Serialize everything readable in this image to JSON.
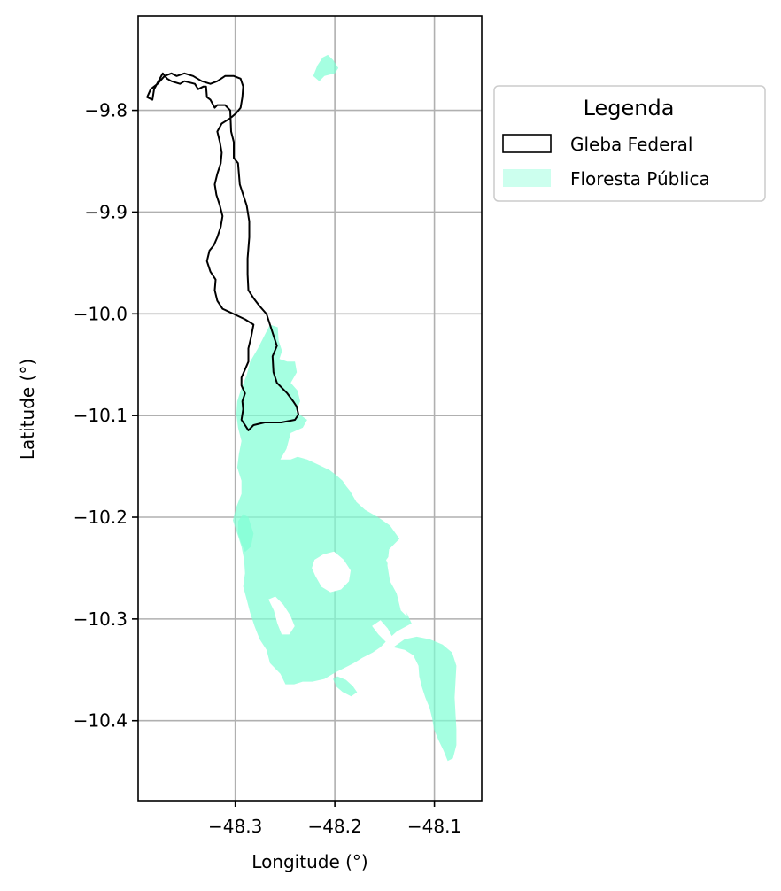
{
  "map": {
    "xlabel": "Longitude (°)",
    "ylabel": "Latitude (°)",
    "xlim": [
      -48.3975,
      -48.0525
    ],
    "ylim": [
      -10.4786,
      -9.7072
    ],
    "grid": true,
    "x_ticks": [
      {
        "value": -48.3,
        "label": "−48.3"
      },
      {
        "value": -48.2,
        "label": "−48.2"
      },
      {
        "value": -48.1,
        "label": "−48.1"
      }
    ],
    "y_ticks": [
      {
        "value": -9.8,
        "label": "−9.8"
      },
      {
        "value": -9.9,
        "label": "−9.9"
      },
      {
        "value": -10.0,
        "label": "−10.0"
      },
      {
        "value": -10.1,
        "label": "−10.1"
      },
      {
        "value": -10.2,
        "label": "−10.2"
      },
      {
        "value": -10.3,
        "label": "−10.3"
      },
      {
        "value": -10.4,
        "label": "−10.4"
      }
    ]
  },
  "legend": {
    "title": "Legenda",
    "placement": "outside-upper-right",
    "items": [
      {
        "label": "Gleba Federal",
        "style": "outline",
        "color": "#000000"
      },
      {
        "label": "Floresta Pública",
        "style": "fill",
        "color": "#7fffd4"
      }
    ]
  },
  "layers": {
    "gleba_federal": {
      "name": "Gleba Federal",
      "stroke": "#000000",
      "fill": "none",
      "coordinates": [
        [
          -48.3832,
          -9.7896
        ],
        [
          -48.3815,
          -9.7792
        ],
        [
          -48.3728,
          -9.7636
        ],
        [
          -48.3684,
          -9.7688
        ],
        [
          -48.3641,
          -9.7714
        ],
        [
          -48.3554,
          -9.774
        ],
        [
          -48.351,
          -9.7714
        ],
        [
          -48.3406,
          -9.774
        ],
        [
          -48.3372,
          -9.7792
        ],
        [
          -48.3319,
          -9.7766
        ],
        [
          -48.3293,
          -9.7766
        ],
        [
          -48.3284,
          -9.787
        ],
        [
          -48.3249,
          -9.7896
        ],
        [
          -48.3206,
          -9.7974
        ],
        [
          -48.318,
          -9.7948
        ],
        [
          -48.3102,
          -9.7948
        ],
        [
          -48.305,
          -9.8
        ],
        [
          -48.3041,
          -9.8208
        ],
        [
          -48.3015,
          -9.8312
        ],
        [
          -48.3015,
          -9.8468
        ],
        [
          -48.2972,
          -9.852
        ],
        [
          -48.2954,
          -9.8728
        ],
        [
          -48.2885,
          -9.8936
        ],
        [
          -48.2859,
          -9.9092
        ],
        [
          -48.2859,
          -9.9248
        ],
        [
          -48.2876,
          -9.9456
        ],
        [
          -48.2876,
          -9.9612
        ],
        [
          -48.2868,
          -9.9768
        ],
        [
          -48.2816,
          -9.9846
        ],
        [
          -48.2755,
          -9.9924
        ],
        [
          -48.2686,
          -10.0002
        ],
        [
          -48.2651,
          -10.0106
        ],
        [
          -48.2608,
          -10.0236
        ],
        [
          -48.2582,
          -10.0314
        ],
        [
          -48.2625,
          -10.0418
        ],
        [
          -48.2616,
          -10.0574
        ],
        [
          -48.2582,
          -10.0678
        ],
        [
          -48.2478,
          -10.0782
        ],
        [
          -48.2418,
          -10.086
        ],
        [
          -48.2383,
          -10.0912
        ],
        [
          -48.2366,
          -10.099
        ],
        [
          -48.24,
          -10.1042
        ],
        [
          -48.2539,
          -10.1068
        ],
        [
          -48.2704,
          -10.1068
        ],
        [
          -48.2816,
          -10.1094
        ],
        [
          -48.2868,
          -10.1146
        ],
        [
          -48.2902,
          -10.1094
        ],
        [
          -48.2937,
          -10.1042
        ],
        [
          -48.292,
          -10.0938
        ],
        [
          -48.2928,
          -10.086
        ],
        [
          -48.2902,
          -10.0782
        ],
        [
          -48.2937,
          -10.0704
        ],
        [
          -48.2937,
          -10.0626
        ],
        [
          -48.2902,
          -10.0548
        ],
        [
          -48.2868,
          -10.047
        ],
        [
          -48.2868,
          -10.034
        ],
        [
          -48.2842,
          -10.0236
        ],
        [
          -48.2816,
          -10.0106
        ],
        [
          -48.2902,
          -10.0054
        ],
        [
          -48.3015,
          -10.0002
        ],
        [
          -48.3128,
          -9.995
        ],
        [
          -48.318,
          -9.9872
        ],
        [
          -48.3206,
          -9.9768
        ],
        [
          -48.3197,
          -9.9664
        ],
        [
          -48.3249,
          -9.9586
        ],
        [
          -48.3284,
          -9.9482
        ],
        [
          -48.3258,
          -9.9378
        ],
        [
          -48.3215,
          -9.9326
        ],
        [
          -48.318,
          -9.9248
        ],
        [
          -48.3145,
          -9.9144
        ],
        [
          -48.3128,
          -9.904
        ],
        [
          -48.3154,
          -9.8936
        ],
        [
          -48.3189,
          -9.8832
        ],
        [
          -48.3206,
          -9.8728
        ],
        [
          -48.318,
          -9.8624
        ],
        [
          -48.3145,
          -9.852
        ],
        [
          -48.3136,
          -9.8416
        ],
        [
          -48.3154,
          -9.8312
        ],
        [
          -48.318,
          -9.8208
        ],
        [
          -48.3136,
          -9.813
        ],
        [
          -48.305,
          -9.8078
        ],
        [
          -48.2989,
          -9.8026
        ],
        [
          -48.2946,
          -9.7974
        ],
        [
          -48.2928,
          -9.787
        ],
        [
          -48.292,
          -9.7766
        ],
        [
          -48.2946,
          -9.7688
        ],
        [
          -48.3015,
          -9.7662
        ],
        [
          -48.3102,
          -9.7662
        ],
        [
          -48.318,
          -9.7714
        ],
        [
          -48.3249,
          -9.774
        ],
        [
          -48.3336,
          -9.7714
        ],
        [
          -48.3423,
          -9.7662
        ],
        [
          -48.351,
          -9.7636
        ],
        [
          -48.3588,
          -9.7662
        ],
        [
          -48.3641,
          -9.7636
        ],
        [
          -48.371,
          -9.7662
        ],
        [
          -48.378,
          -9.774
        ],
        [
          -48.3849,
          -9.7792
        ],
        [
          -48.3884,
          -9.787
        ],
        [
          -48.3832,
          -9.7896
        ]
      ]
    },
    "floresta_publica": {
      "name": "Floresta Pública",
      "fill": "#7fffd4",
      "opacity": 0.7,
      "polygons": [
        [
          [
            -48.2217,
            -9.7662
          ],
          [
            -48.2174,
            -9.7558
          ],
          [
            -48.2122,
            -9.748
          ],
          [
            -48.207,
            -9.7454
          ],
          [
            -48.2017,
            -9.7506
          ],
          [
            -48.1965,
            -9.7584
          ],
          [
            -48.2,
            -9.7636
          ],
          [
            -48.2104,
            -9.7662
          ],
          [
            -48.2156,
            -9.7714
          ],
          [
            -48.2217,
            -9.7662
          ]
        ],
        [
          [
            -48.2772,
            -10.034
          ],
          [
            -48.2651,
            -10.0106
          ],
          [
            -48.2573,
            -10.0132
          ],
          [
            -48.2565,
            -10.0262
          ],
          [
            -48.253,
            -10.0366
          ],
          [
            -48.2556,
            -10.0444
          ],
          [
            -48.2478,
            -10.047
          ],
          [
            -48.24,
            -10.047
          ],
          [
            -48.2382,
            -10.0574
          ],
          [
            -48.2443,
            -10.0678
          ],
          [
            -48.2374,
            -10.0756
          ],
          [
            -48.2348,
            -10.086
          ],
          [
            -48.2391,
            -10.0964
          ],
          [
            -48.2278,
            -10.1042
          ],
          [
            -48.2322,
            -10.112
          ],
          [
            -48.2443,
            -10.1172
          ],
          [
            -48.2486,
            -10.1328
          ],
          [
            -48.2547,
            -10.1432
          ],
          [
            -48.2443,
            -10.1432
          ],
          [
            -48.2374,
            -10.1406
          ],
          [
            -48.2278,
            -10.1432
          ],
          [
            -48.2165,
            -10.1484
          ],
          [
            -48.2053,
            -10.1536
          ],
          [
            -48.1983,
            -10.1588
          ],
          [
            -48.1923,
            -10.164
          ],
          [
            -48.1888,
            -10.1692
          ],
          [
            -48.1845,
            -10.1744
          ],
          [
            -48.1784,
            -10.1848
          ],
          [
            -48.1698,
            -10.1926
          ],
          [
            -48.1559,
            -10.2004
          ],
          [
            -48.1446,
            -10.2082
          ],
          [
            -48.1351,
            -10.2212
          ],
          [
            -48.1455,
            -10.2316
          ],
          [
            -48.1472,
            -10.2472
          ],
          [
            -48.1446,
            -10.2628
          ],
          [
            -48.1359,
            -10.2784
          ],
          [
            -48.129,
            -10.2914
          ],
          [
            -48.1229,
            -10.3044
          ],
          [
            -48.1377,
            -10.3122
          ],
          [
            -48.1464,
            -10.32
          ],
          [
            -48.1542,
            -10.3278
          ],
          [
            -48.162,
            -10.333
          ],
          [
            -48.1724,
            -10.3382
          ],
          [
            -48.181,
            -10.3434
          ],
          [
            -48.1914,
            -10.3486
          ],
          [
            -48.2018,
            -10.3538
          ],
          [
            -48.2105,
            -10.359
          ],
          [
            -48.2226,
            -10.3616
          ],
          [
            -48.2322,
            -10.3616
          ],
          [
            -48.2408,
            -10.3642
          ],
          [
            -48.2495,
            -10.3642
          ],
          [
            -48.2547,
            -10.3538
          ],
          [
            -48.2651,
            -10.3434
          ],
          [
            -48.2686,
            -10.3304
          ],
          [
            -48.2755,
            -10.32
          ],
          [
            -48.2807,
            -10.307
          ],
          [
            -48.285,
            -10.294
          ],
          [
            -48.2885,
            -10.281
          ],
          [
            -48.292,
            -10.268
          ],
          [
            -48.2902,
            -10.255
          ],
          [
            -48.2911,
            -10.242
          ],
          [
            -48.2937,
            -10.229
          ],
          [
            -48.298,
            -10.216
          ],
          [
            -48.3024,
            -10.203
          ],
          [
            -48.2989,
            -10.19
          ],
          [
            -48.2937,
            -10.177
          ],
          [
            -48.2937,
            -10.164
          ],
          [
            -48.298,
            -10.151
          ],
          [
            -48.2963,
            -10.138
          ],
          [
            -48.2937,
            -10.125
          ],
          [
            -48.2972,
            -10.112
          ],
          [
            -48.2989,
            -10.099
          ],
          [
            -48.298,
            -10.086
          ],
          [
            -48.2937,
            -10.073
          ],
          [
            -48.2885,
            -10.06
          ],
          [
            -48.285,
            -10.047
          ],
          [
            -48.2772,
            -10.034
          ]
        ],
        [
          [
            -48.2972,
            -10.204
          ],
          [
            -48.292,
            -10.197
          ],
          [
            -48.2868,
            -10.2
          ],
          [
            -48.2842,
            -10.2082
          ],
          [
            -48.2816,
            -10.216
          ],
          [
            -48.2842,
            -10.229
          ],
          [
            -48.2902,
            -10.2342
          ],
          [
            -48.2937,
            -10.2264
          ],
          [
            -48.2972,
            -10.216
          ],
          [
            -48.2972,
            -10.204
          ]
        ],
        [
          [
            -48.2018,
            -10.359
          ],
          [
            -48.1975,
            -10.3564
          ],
          [
            -48.1888,
            -10.3598
          ],
          [
            -48.1819,
            -10.366
          ],
          [
            -48.1776,
            -10.372
          ],
          [
            -48.1836,
            -10.376
          ],
          [
            -48.1923,
            -10.3718
          ],
          [
            -48.1983,
            -10.3666
          ],
          [
            -48.2018,
            -10.359
          ]
        ],
        [
          [
            -48.1412,
            -10.3278
          ],
          [
            -48.1299,
            -10.3304
          ],
          [
            -48.1212,
            -10.3356
          ],
          [
            -48.116,
            -10.346
          ],
          [
            -48.1152,
            -10.3564
          ],
          [
            -48.1126,
            -10.3668
          ],
          [
            -48.1091,
            -10.3772
          ],
          [
            -48.1048,
            -10.3876
          ],
          [
            -48.1022,
            -10.398
          ],
          [
            -48.1004,
            -10.4084
          ],
          [
            -48.0961,
            -10.4188
          ],
          [
            -48.0909,
            -10.4292
          ],
          [
            -48.0866,
            -10.4396
          ],
          [
            -48.0814,
            -10.437
          ],
          [
            -48.0779,
            -10.424
          ],
          [
            -48.0779,
            -10.4084
          ],
          [
            -48.0788,
            -10.3928
          ],
          [
            -48.0797,
            -10.3772
          ],
          [
            -48.0788,
            -10.3616
          ],
          [
            -48.0779,
            -10.346
          ],
          [
            -48.0822,
            -10.333
          ],
          [
            -48.0918,
            -10.3252
          ],
          [
            -48.1048,
            -10.32
          ],
          [
            -48.1178,
            -10.3174
          ],
          [
            -48.1299,
            -10.32
          ],
          [
            -48.1412,
            -10.3278
          ]
        ]
      ]
    },
    "holes": [
      [
        [
          -48.22,
          -10.242
        ],
        [
          -48.2113,
          -10.2368
        ],
        [
          -48.2009,
          -10.2342
        ],
        [
          -48.1914,
          -10.242
        ],
        [
          -48.1845,
          -10.2524
        ],
        [
          -48.1862,
          -10.2628
        ],
        [
          -48.194,
          -10.2706
        ],
        [
          -48.2044,
          -10.2732
        ],
        [
          -48.2131,
          -10.268
        ],
        [
          -48.2191,
          -10.2576
        ],
        [
          -48.2226,
          -10.2498
        ],
        [
          -48.22,
          -10.242
        ]
      ],
      [
        [
          -48.148,
          -10.242
        ],
        [
          -48.142,
          -10.255
        ],
        [
          -48.1393,
          -10.268
        ],
        [
          -48.1359,
          -10.281
        ],
        [
          -48.1333,
          -10.2914
        ],
        [
          -48.1281,
          -10.2966
        ],
        [
          -48.129,
          -10.2836
        ],
        [
          -48.1316,
          -10.268
        ],
        [
          -48.1342,
          -10.255
        ],
        [
          -48.1377,
          -10.242
        ],
        [
          -48.142,
          -10.2342
        ],
        [
          -48.148,
          -10.242
        ]
      ],
      [
        [
          -48.266,
          -10.281
        ],
        [
          -48.2608,
          -10.2914
        ],
        [
          -48.2573,
          -10.3044
        ],
        [
          -48.253,
          -10.3148
        ],
        [
          -48.246,
          -10.3148
        ],
        [
          -48.2408,
          -10.307
        ],
        [
          -48.2452,
          -10.2966
        ],
        [
          -48.2521,
          -10.2862
        ],
        [
          -48.2599,
          -10.2784
        ],
        [
          -48.266,
          -10.281
        ]
      ],
      [
        [
          -48.162,
          -10.307
        ],
        [
          -48.1559,
          -10.3148
        ],
        [
          -48.1481,
          -10.3226
        ],
        [
          -48.1429,
          -10.3174
        ],
        [
          -48.1472,
          -10.3096
        ],
        [
          -48.1542,
          -10.3018
        ],
        [
          -48.162,
          -10.307
        ]
      ]
    ]
  }
}
